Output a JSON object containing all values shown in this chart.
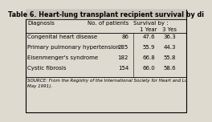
{
  "title": "Table 6. Heart-lung transplant recipient survival by di",
  "col_headers": [
    "Diagnosis",
    "No. of patients",
    "Survival by :",
    ""
  ],
  "sub_headers_1yr": "1 Year",
  "sub_headers_3yr": "3 Yes",
  "rows": [
    [
      "Congenital heart disease",
      "86",
      "47.6",
      "36.3"
    ],
    [
      "Primary pulmonary hypertension",
      "285",
      "55.9",
      "44.3"
    ],
    [
      "Eisenmenger's syndrome",
      "182",
      "66.8",
      "55.8"
    ],
    [
      "Cystic fibrosis",
      "154",
      "66.0",
      "58.6"
    ]
  ],
  "source_line1": "SOURCE: From the Registry of the International Society for Heart and Lu",
  "source_line2": "May 1991).",
  "bg_color": "#dedad0",
  "border_color": "#000000",
  "text_color": "#000000",
  "font_size": 5.0,
  "title_font_size": 5.8
}
